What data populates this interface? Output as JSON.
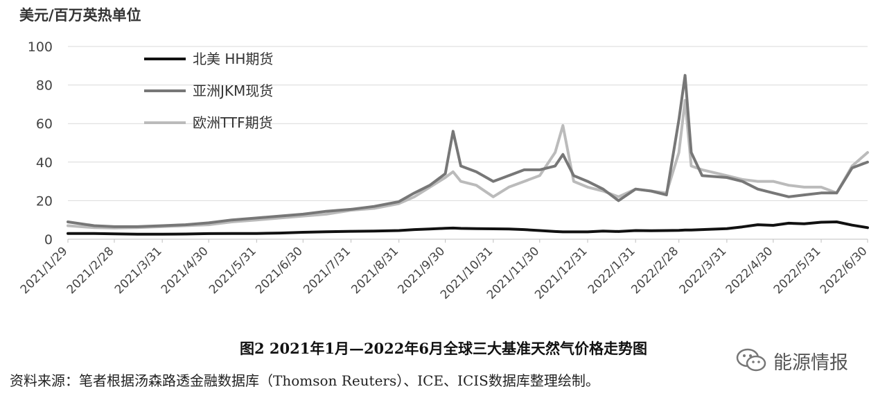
{
  "chart_data": {
    "type": "line",
    "ylabel": "美元/百万英热单位",
    "ylim": [
      0,
      100
    ],
    "yticks": [
      0,
      20,
      40,
      60,
      80,
      100
    ],
    "grid": "horizontal",
    "legend_position": "top-left",
    "x_tick_labels": [
      "2021/1/29",
      "2021/2/28",
      "2021/3/31",
      "2021/4/30",
      "2021/5/31",
      "2021/6/30",
      "2021/7/31",
      "2021/8/31",
      "2021/9/30",
      "2021/10/31",
      "2021/11/30",
      "2021/12/31",
      "2022/1/31",
      "2022/2/28",
      "2022/3/31",
      "2022/4/30",
      "2022/5/31",
      "2022/6/30"
    ],
    "x": [
      "2021/1/29",
      "2021/2/15",
      "2021/2/28",
      "2021/3/15",
      "2021/3/31",
      "2021/4/15",
      "2021/4/30",
      "2021/5/15",
      "2021/5/31",
      "2021/6/15",
      "2021/6/30",
      "2021/7/15",
      "2021/7/31",
      "2021/8/15",
      "2021/8/31",
      "2021/9/10",
      "2021/9/20",
      "2021/9/30",
      "2021/10/5",
      "2021/10/10",
      "2021/10/20",
      "2021/10/31",
      "2021/11/10",
      "2021/11/20",
      "2021/11/30",
      "2021/12/10",
      "2021/12/15",
      "2021/12/22",
      "2021/12/31",
      "2022/1/10",
      "2022/1/20",
      "2022/1/31",
      "2022/2/10",
      "2022/2/20",
      "2022/2/28",
      "2022/3/4",
      "2022/3/8",
      "2022/3/15",
      "2022/3/31",
      "2022/4/10",
      "2022/4/20",
      "2022/4/30",
      "2022/5/10",
      "2022/5/20",
      "2022/5/31",
      "2022/6/10",
      "2022/6/20",
      "2022/6/30"
    ],
    "series": [
      {
        "name": "北美 HH期货",
        "color": "#111111",
        "values": [
          3,
          3,
          2.8,
          2.6,
          2.6,
          2.7,
          2.9,
          3.0,
          3.0,
          3.2,
          3.6,
          3.9,
          4.1,
          4.2,
          4.5,
          5.0,
          5.3,
          5.7,
          5.8,
          5.6,
          5.5,
          5.4,
          5.3,
          5.0,
          4.5,
          4.0,
          3.8,
          3.8,
          3.8,
          4.2,
          4.0,
          4.5,
          4.4,
          4.5,
          4.6,
          4.8,
          4.8,
          5.0,
          5.5,
          6.4,
          7.5,
          7.2,
          8.3,
          8.0,
          8.8,
          9.0,
          7.3,
          6.0
        ]
      },
      {
        "name": "亚洲JKM现货",
        "color": "#777777",
        "values": [
          9,
          7,
          6.5,
          6.5,
          7,
          7.5,
          8.5,
          10,
          11,
          12,
          13,
          14.5,
          15.5,
          17,
          19.5,
          24,
          28,
          34,
          56,
          38,
          35,
          30,
          33,
          36,
          36,
          38,
          44,
          33,
          30,
          26,
          20,
          26,
          25,
          23,
          62,
          85,
          45,
          33,
          32,
          30,
          26,
          24,
          22,
          23,
          24,
          24,
          37,
          40
        ]
      },
      {
        "name": "欧洲TTF期货",
        "color": "#bbbbbb",
        "values": [
          7,
          6,
          5.8,
          6,
          6.5,
          7,
          7.5,
          9,
          10,
          11,
          12,
          13,
          15,
          16,
          18.5,
          22,
          27,
          32,
          35,
          30,
          28,
          22,
          27,
          30,
          33,
          45,
          59,
          30,
          27,
          25,
          22,
          26,
          25,
          24,
          45,
          72,
          38,
          36,
          33,
          31,
          30,
          30,
          28,
          27,
          27,
          24,
          38,
          45
        ]
      }
    ]
  },
  "caption": "图2   2021年1月—2022年6月全球三大基准天然气价格走势图",
  "source": "资料来源：笔者根据汤森路透金融数据库（Thomson Reuters）、ICE、ICIS数据库整理绘制。",
  "watermark": "能源情报",
  "watermark_icon": "wechat-icon"
}
